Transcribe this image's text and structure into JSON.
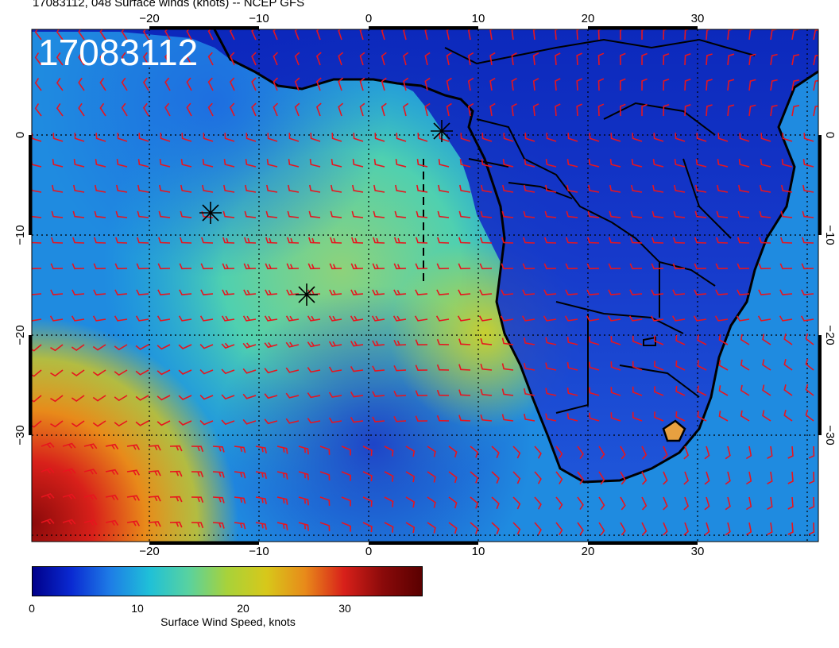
{
  "header": {
    "title": "17083112, 048 Surface winds (knots) -- NCEP GFS"
  },
  "map": {
    "stamp": "17083112",
    "lon_ticks": [
      "−20",
      "−10",
      "0",
      "10",
      "20",
      "30"
    ],
    "lat_ticks": [
      "0",
      "−10",
      "−20",
      "−30"
    ],
    "extent": {
      "lon_min": -31,
      "lon_max": 41,
      "lat_min": -40,
      "lat_max": 10
    },
    "markers": [
      {
        "name": "storm-marker",
        "lon": 6.5,
        "lat": 0.5
      },
      {
        "name": "storm-marker",
        "lon": -14.6,
        "lat": -8.3
      },
      {
        "name": "storm-marker",
        "lon": -5.8,
        "lat": -16.3
      }
    ],
    "wind_barb_color": "#e8141e",
    "coast_color": "#000000"
  },
  "colorbar": {
    "label": "Surface Wind Speed, knots",
    "ticks": [
      "0",
      "10",
      "20",
      "30"
    ],
    "tick_values": [
      0,
      10,
      20,
      30
    ],
    "range": [
      0,
      37
    ],
    "colors": [
      "#00008a",
      "#0a2ad2",
      "#1e7de6",
      "#1fc0d8",
      "#58d2a0",
      "#a8d23a",
      "#d7c81a",
      "#e88a1a",
      "#d8201a",
      "#8a0a0a",
      "#5a0000"
    ]
  }
}
